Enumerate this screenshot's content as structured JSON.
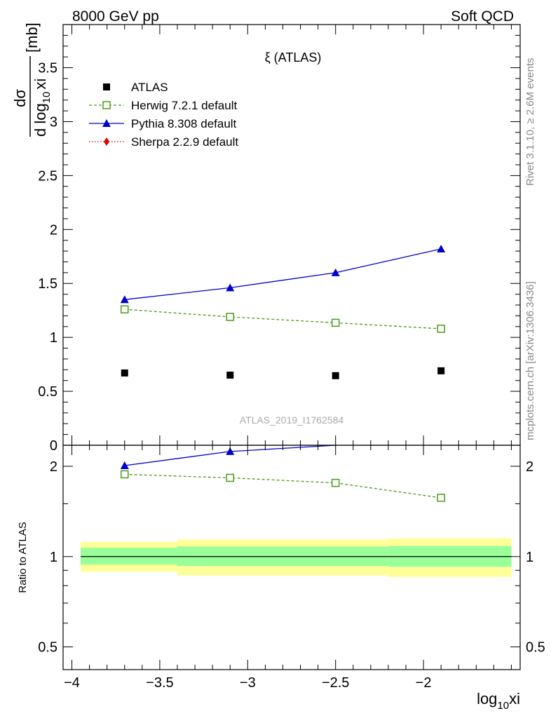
{
  "header": {
    "left": "8000 GeV pp",
    "right": "Soft QCD"
  },
  "side": {
    "rivet": "Rivet 3.1.10, ≥ 2.6M events",
    "mcplots": "mcplots.cern.ch [arXiv:1306.3436]"
  },
  "chart_data": {
    "type": "line",
    "title": "ξ (ATLAS)",
    "watermark": "ATLAS_2019_I1762584",
    "xlabel": "log",
    "xlabel_sub": "10",
    "xlabel_tail": "xi",
    "xlim": [
      -4.05,
      -1.45
    ],
    "xticks": [
      -4,
      -3.5,
      -3,
      -2.5,
      -2
    ],
    "xtick_labels": [
      "−4",
      "−3.5",
      "−3",
      "−2.5",
      "−2"
    ],
    "main": {
      "ylabel_num": "dσ",
      "ylabel_den": "d log",
      "ylabel_den_sub": "10",
      "ylabel_den_tail": "xi",
      "ylabel_unit": "[mb]",
      "ylim": [
        0,
        3.9
      ],
      "yticks": [
        0,
        0.5,
        1,
        1.5,
        2,
        2.5,
        3,
        3.5
      ],
      "ytick_labels": [
        "0",
        "0.5",
        "1",
        "1.5",
        "2",
        "2.5",
        "3",
        "3.5"
      ]
    },
    "ratio": {
      "ylabel": "Ratio to ATLAS",
      "ylim": [
        0.42,
        2.35
      ],
      "log_scale": true,
      "yticks": [
        0.5,
        1,
        2
      ],
      "ytick_labels": [
        "0.5",
        "1",
        "2"
      ],
      "bands": [
        {
          "x0": -3.95,
          "x1": -3.4,
          "stat_lo": 0.94,
          "stat_hi": 1.07,
          "tot_lo": 0.89,
          "tot_hi": 1.12
        },
        {
          "x0": -3.4,
          "x1": -2.2,
          "stat_lo": 0.93,
          "stat_hi": 1.08,
          "tot_lo": 0.865,
          "tot_hi": 1.14
        },
        {
          "x0": -2.2,
          "x1": -1.5,
          "stat_lo": 0.925,
          "stat_hi": 1.085,
          "tot_lo": 0.855,
          "tot_hi": 1.15
        }
      ]
    },
    "series": [
      {
        "name": "ATLAS",
        "kind": "data",
        "color": "#000000",
        "x": [
          -3.7,
          -3.1,
          -2.5,
          -1.9
        ],
        "y": [
          0.67,
          0.65,
          0.645,
          0.69
        ]
      },
      {
        "name": "Herwig 7.2.1 default",
        "kind": "herwig",
        "color": "#4a9a18",
        "x": [
          -3.7,
          -3.1,
          -2.5,
          -1.9
        ],
        "y": [
          1.26,
          1.19,
          1.135,
          1.08
        ],
        "ratio": [
          1.88,
          1.83,
          1.76,
          1.57
        ]
      },
      {
        "name": "Pythia 8.308 default",
        "kind": "pythia",
        "color": "#0000cc",
        "x": [
          -3.7,
          -3.1,
          -2.5,
          -1.9
        ],
        "y": [
          1.35,
          1.46,
          1.6,
          1.82
        ],
        "ratio": [
          2.01,
          2.24,
          2.48,
          2.64
        ]
      },
      {
        "name": "Sherpa 2.2.9 default",
        "kind": "sherpa",
        "color": "#dd0000",
        "x": [],
        "y": []
      }
    ]
  }
}
